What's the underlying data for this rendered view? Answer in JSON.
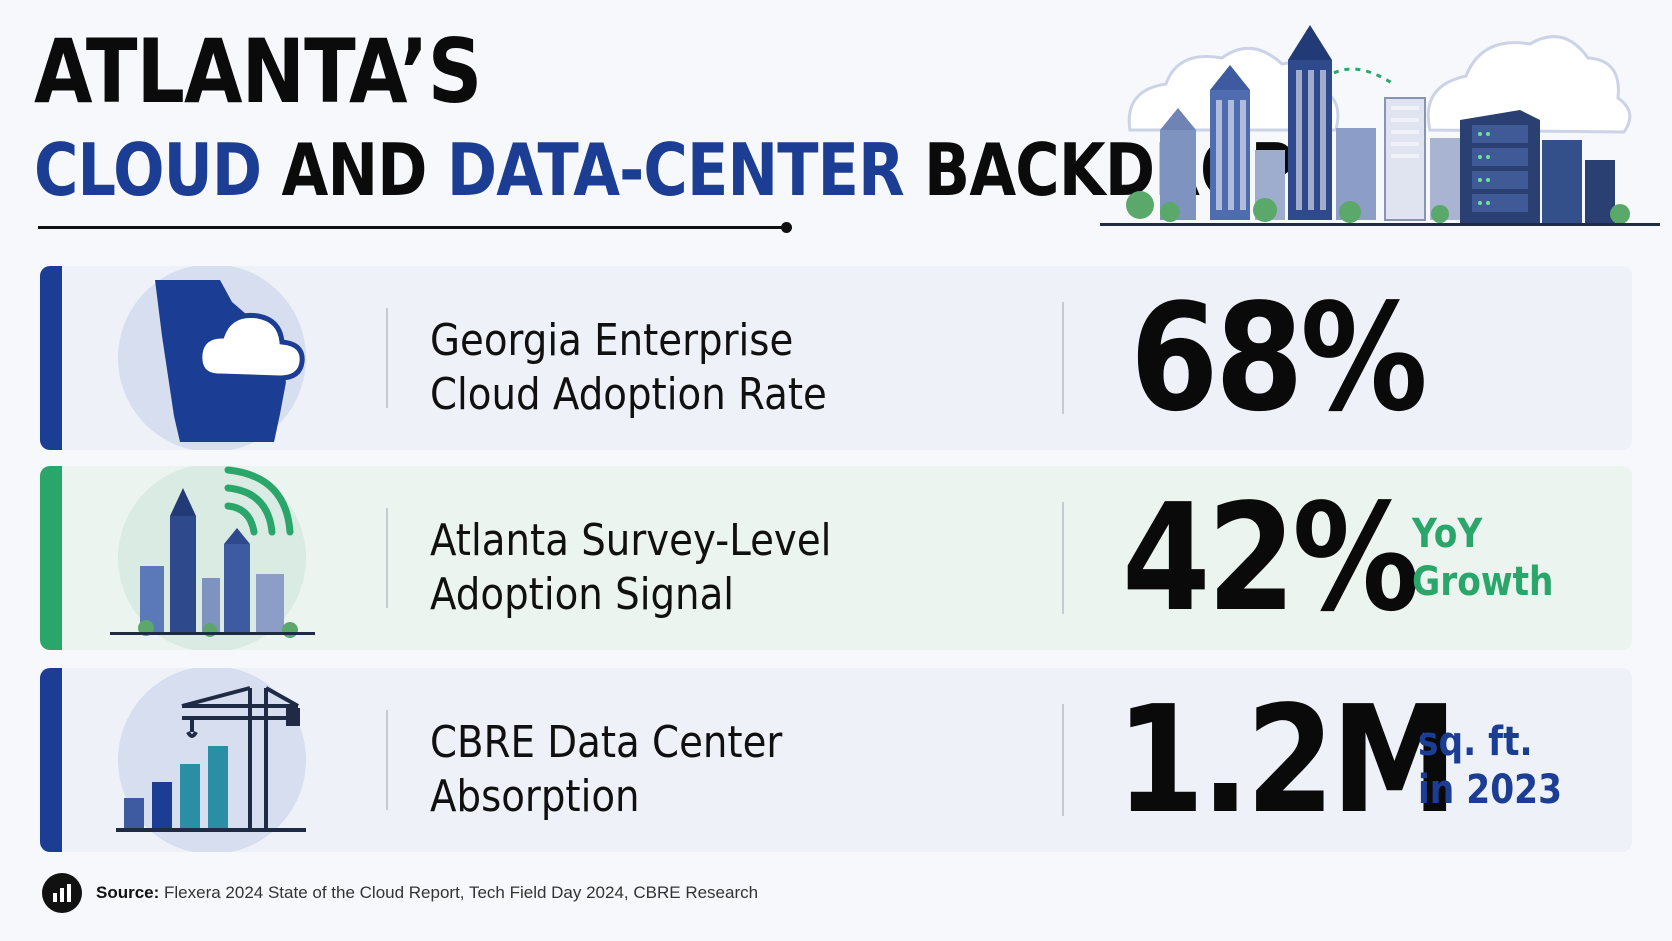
{
  "header": {
    "title_line1": "ATLANTA’S",
    "title_line2_part1": "CLOUD",
    "title_line2_part2": " AND ",
    "title_line2_part3": "DATA-CENTER",
    "title_line2_part4": " BACKDROP"
  },
  "colors": {
    "brand_blue": "#1b3d93",
    "brand_green": "#2aa66a",
    "ink": "#0b0b0b"
  },
  "stats": [
    {
      "label_line1": "Georgia Enterprise",
      "label_line2": "Cloud Adoption Rate",
      "value": "68%",
      "unit_line1": "",
      "unit_line2": "",
      "icon": "georgia-cloud-icon"
    },
    {
      "label_line1": "Atlanta Survey-Level",
      "label_line2": "Adoption Signal",
      "value": "42%",
      "unit_line1": "YoY",
      "unit_line2": "Growth",
      "icon": "city-signal-icon"
    },
    {
      "label_line1": "CBRE Data Center",
      "label_line2": "Absorption",
      "value": "1.2M",
      "unit_line1": "sq. ft.",
      "unit_line2": "in 2023",
      "icon": "crane-chart-icon"
    }
  ],
  "source": {
    "label": "Source:",
    "text": " Flexera 2024 State of the Cloud Report, Tech Field Day 2024, CBRE Research",
    "icon": "bar-chart-icon"
  }
}
